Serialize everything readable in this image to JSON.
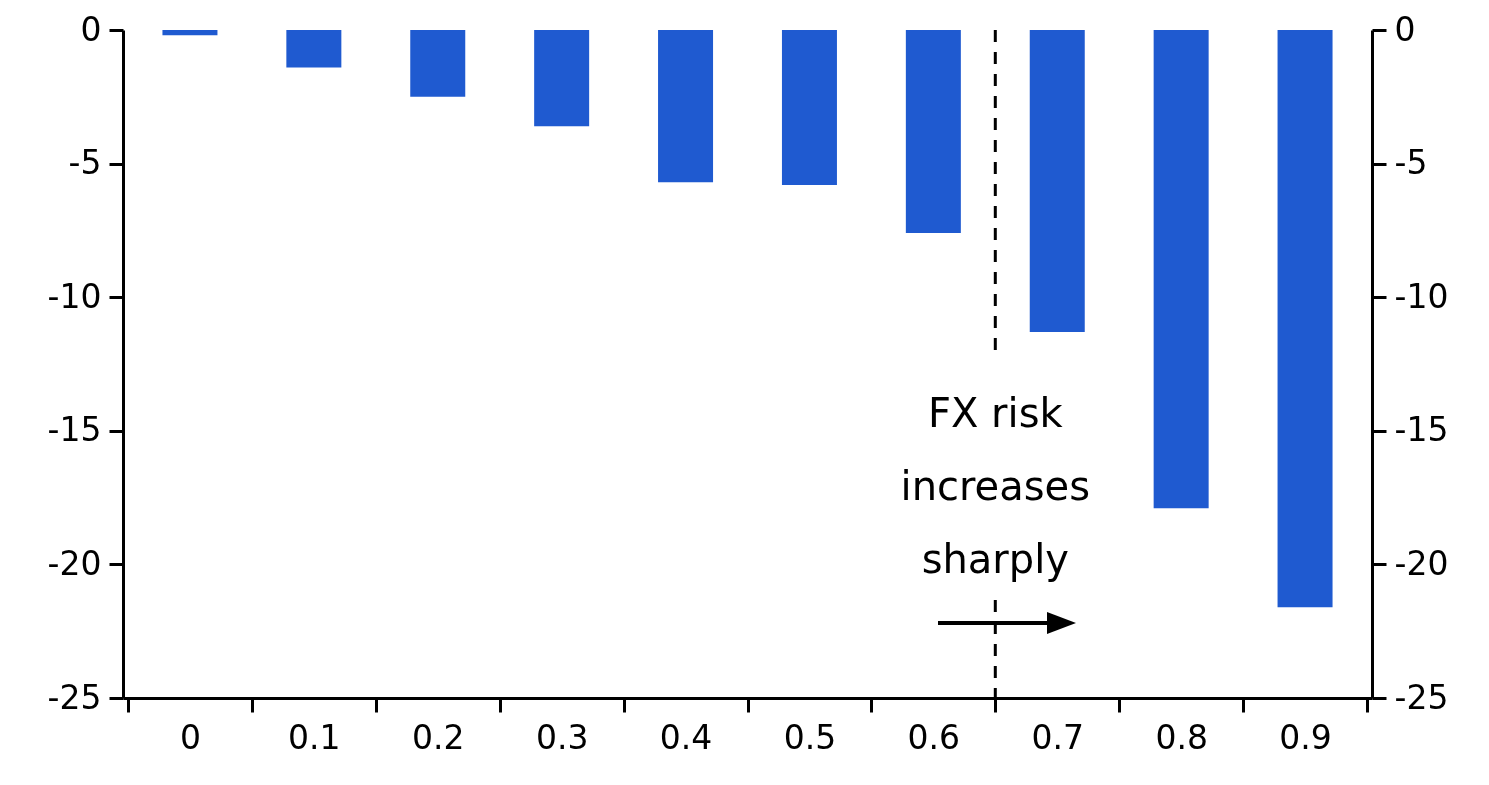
{
  "chart_data": {
    "type": "bar",
    "x": [
      0,
      0.1,
      0.2,
      0.3,
      0.4,
      0.5,
      0.6,
      0.7,
      0.8,
      0.9
    ],
    "values": [
      -0.2,
      -1.4,
      -2.5,
      -3.6,
      -5.7,
      -5.8,
      -7.6,
      -11.3,
      -17.9,
      -21.6
    ],
    "color": "#1f5ad0",
    "xlim": [
      -0.05,
      0.95
    ],
    "xticks": [
      {
        "value": -0.05,
        "label": null
      },
      0,
      {
        "value": 0.05,
        "label": null
      },
      0.1,
      {
        "value": 0.15,
        "label": null
      },
      0.2,
      {
        "value": 0.25,
        "label": null
      },
      0.3,
      {
        "value": 0.35,
        "label": null
      },
      0.4,
      {
        "value": 0.45,
        "label": null
      },
      0.5,
      {
        "value": 0.55,
        "label": null
      },
      0.6,
      {
        "value": 0.65,
        "label": null
      },
      0.7,
      {
        "value": 0.75,
        "label": null
      },
      0.8,
      {
        "value": 0.85,
        "label": null
      },
      0.9,
      {
        "value": 0.95,
        "label": null
      }
    ],
    "ylim": [
      -25,
      0
    ],
    "yticks": [
      -25,
      -20,
      -15,
      -10,
      -5,
      0
    ],
    "y2lim": [
      -25,
      0
    ],
    "y2ticks": [
      -25,
      -20,
      -15,
      -10,
      -5,
      0
    ],
    "ref_lines": [
      {
        "axis": "x",
        "value": 0.65,
        "color": "#000000",
        "line_style": "dashed",
        "label": "FX risk\nincreases\nsharply"
      }
    ],
    "grid": false
  }
}
